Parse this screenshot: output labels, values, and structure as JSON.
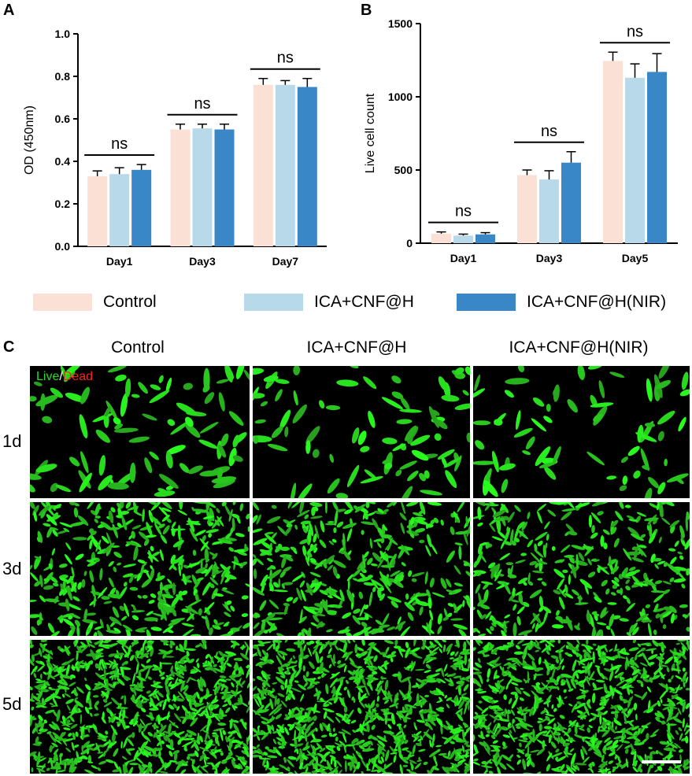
{
  "panels": {
    "a": "A",
    "b": "B",
    "c": "C"
  },
  "legend": [
    {
      "label": "Control",
      "color": "#fbe0d6"
    },
    {
      "label": "ICA+CNF@H",
      "color": "#b8d9ea"
    },
    {
      "label": "ICA+CNF@H(NIR)",
      "color": "#3a87c8"
    }
  ],
  "chart_data": [
    {
      "type": "bar",
      "ylabel": "OD (450nm)",
      "ylim": [
        0,
        1.0
      ],
      "yticks": [
        "0.0",
        "0.2",
        "0.4",
        "0.6",
        "0.8",
        "1.0"
      ],
      "categories": [
        "Day1",
        "Day3",
        "Day7"
      ],
      "series": [
        {
          "name": "Control",
          "values": [
            0.33,
            0.55,
            0.76
          ],
          "errors": [
            0.025,
            0.025,
            0.03
          ]
        },
        {
          "name": "ICA+CNF@H",
          "values": [
            0.34,
            0.555,
            0.76
          ],
          "errors": [
            0.03,
            0.02,
            0.02
          ]
        },
        {
          "name": "ICA+CNF@H(NIR)",
          "values": [
            0.36,
            0.55,
            0.75
          ],
          "errors": [
            0.025,
            0.025,
            0.04
          ]
        }
      ],
      "annotations": [
        "ns",
        "ns",
        "ns"
      ]
    },
    {
      "type": "bar",
      "ylabel": "Live cell count",
      "ylim": [
        0,
        1500
      ],
      "yticks": [
        "0",
        "500",
        "1000",
        "1500"
      ],
      "categories": [
        "Day1",
        "Day3",
        "Day5"
      ],
      "series": [
        {
          "name": "Control",
          "values": [
            65,
            465,
            1245
          ],
          "errors": [
            12,
            35,
            60
          ]
        },
        {
          "name": "ICA+CNF@H",
          "values": [
            52,
            435,
            1130
          ],
          "errors": [
            10,
            60,
            95
          ]
        },
        {
          "name": "ICA+CNF@H(NIR)",
          "values": [
            60,
            550,
            1170
          ],
          "errors": [
            12,
            75,
            125
          ]
        }
      ],
      "annotations": [
        "ns",
        "ns",
        "ns"
      ]
    }
  ],
  "micrographs": {
    "columns": [
      "Control",
      "ICA+CNF@H",
      "ICA+CNF@H(NIR)"
    ],
    "rows": [
      "1d",
      "3d",
      "5d"
    ],
    "stain_live": "Live",
    "stain_sep": "/",
    "stain_dead": "Dead",
    "live_color": "#22dd22",
    "dead_color": "#ff2020"
  }
}
